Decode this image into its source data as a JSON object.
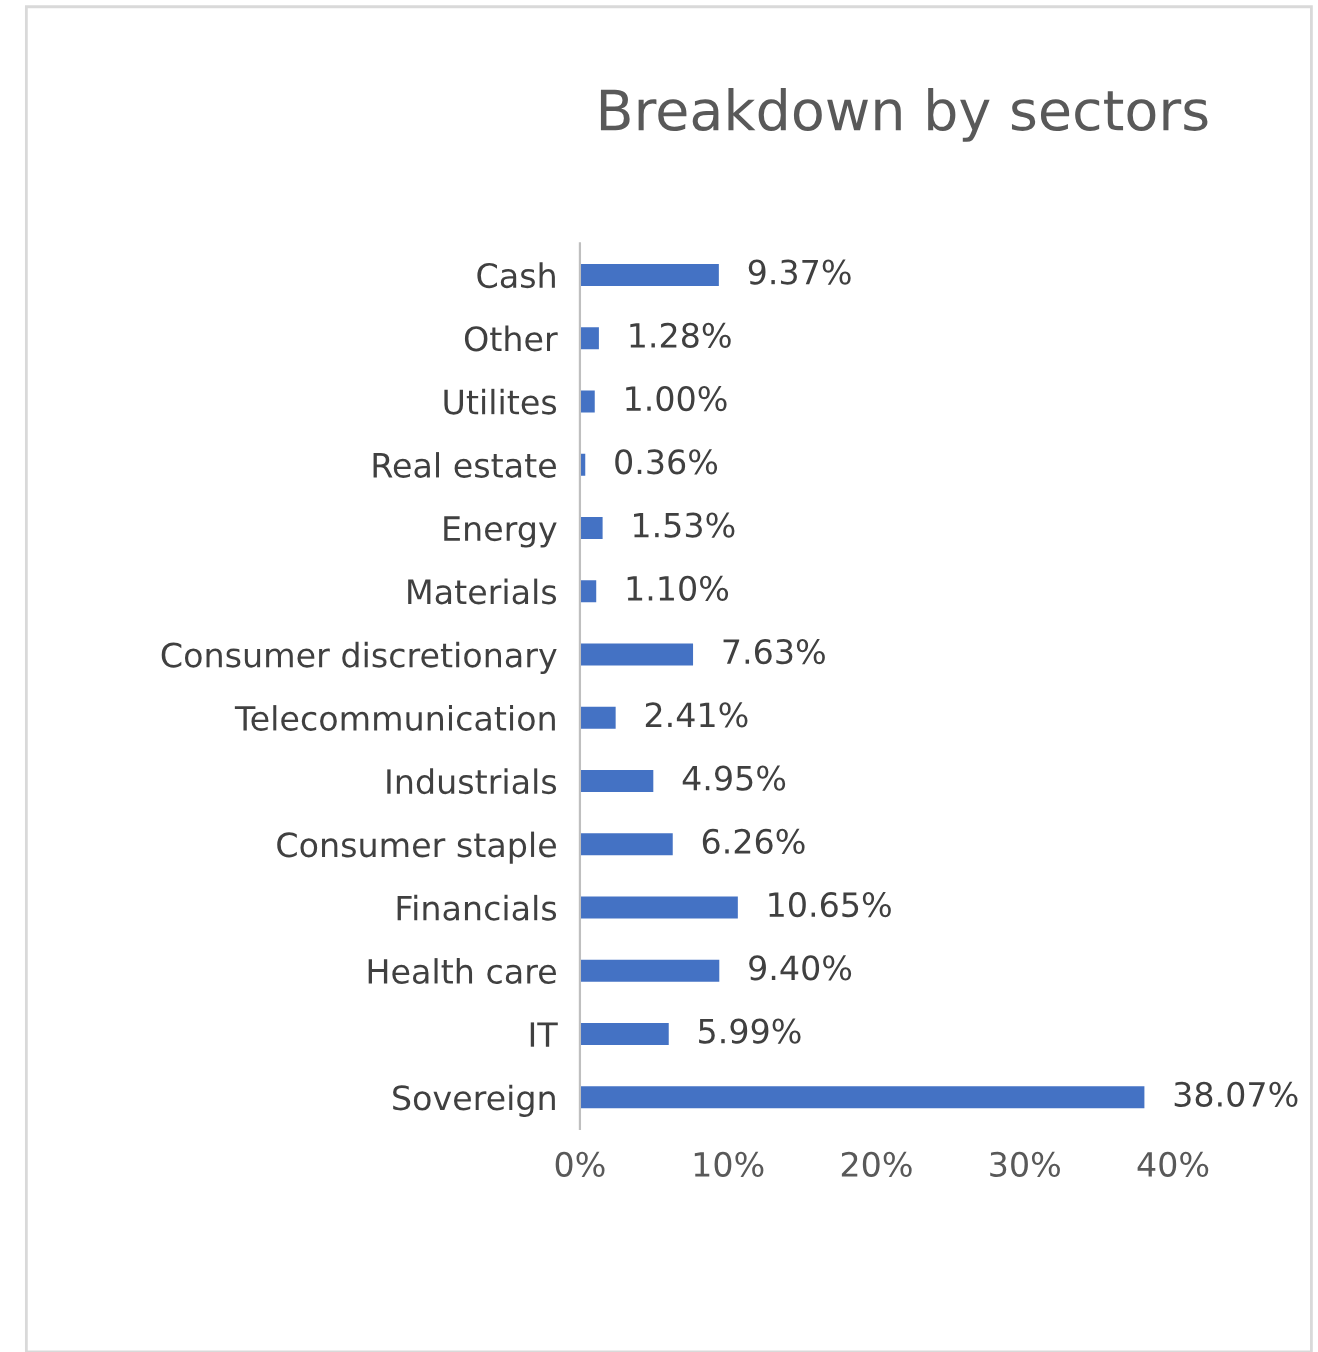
{
  "chart_data": {
    "type": "bar",
    "orientation": "horizontal",
    "title": "Breakdown by sectors",
    "categories": [
      "Cash",
      "Other",
      "Utilites",
      "Real estate",
      "Energy",
      "Materials",
      "Consumer discretionary",
      "Telecommunication",
      "Industrials",
      "Consumer staple",
      "Financials",
      "Health care",
      "IT",
      "Sovereign"
    ],
    "values": [
      9.37,
      1.28,
      1.0,
      0.36,
      1.53,
      1.1,
      7.63,
      2.41,
      4.95,
      6.26,
      10.65,
      9.4,
      5.99,
      38.07
    ],
    "value_labels": [
      "9.37%",
      "1.28%",
      "1.00%",
      "0.36%",
      "1.53%",
      "1.10%",
      "7.63%",
      "2.41%",
      "4.95%",
      "6.26%",
      "10.65%",
      "9.40%",
      "5.99%",
      "38.07%"
    ],
    "color": "#4472c4",
    "xlim": [
      0,
      40
    ],
    "xticks": [
      {
        "value": 0,
        "label": "0%"
      },
      {
        "value": 10,
        "label": "10%"
      },
      {
        "value": 20,
        "label": "20%"
      },
      {
        "value": 30,
        "label": "30%"
      },
      {
        "value": 40,
        "label": "40%"
      }
    ],
    "grid": false,
    "legend": false
  }
}
